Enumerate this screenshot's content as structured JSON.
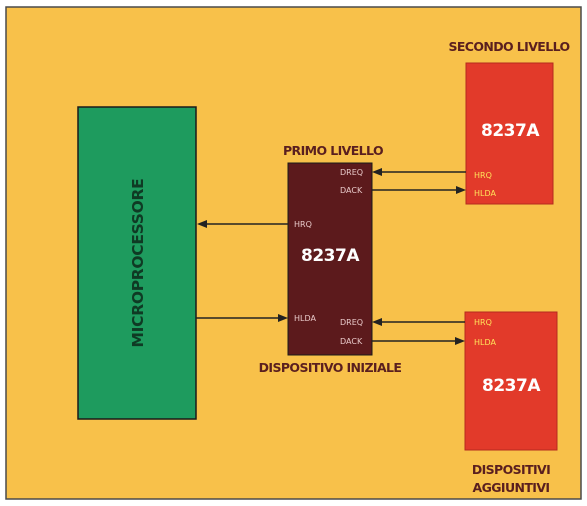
{
  "microprocessor": {
    "label": "MICROPROCESSORE"
  },
  "primary_controller": {
    "heading": "PRIMO LIVELLO",
    "chip": "8237A",
    "caption": "DISPOSITIVO INIZIALE",
    "pins": {
      "hrq": "HRQ",
      "hlda": "HLDA",
      "dreq_top": "DREQ",
      "dack_top": "DACK",
      "dreq_bottom": "DREQ",
      "dack_bottom": "DACK"
    }
  },
  "secondary_top": {
    "heading": "SECONDO LIVELLO",
    "chip": "8237A",
    "pins": {
      "hrq": "HRQ",
      "hlda": "HLDA"
    }
  },
  "secondary_bottom": {
    "chip": "8237A",
    "caption_line1": "DISPOSITIVI",
    "caption_line2": "AGGIUNTIVI",
    "pins": {
      "hrq": "HRQ",
      "hlda": "HLDA"
    }
  },
  "colors": {
    "background": "#f8c14a",
    "microprocessor": "#1e9b5e",
    "primary": "#5c1a1c",
    "secondary": "#e23a2a"
  }
}
